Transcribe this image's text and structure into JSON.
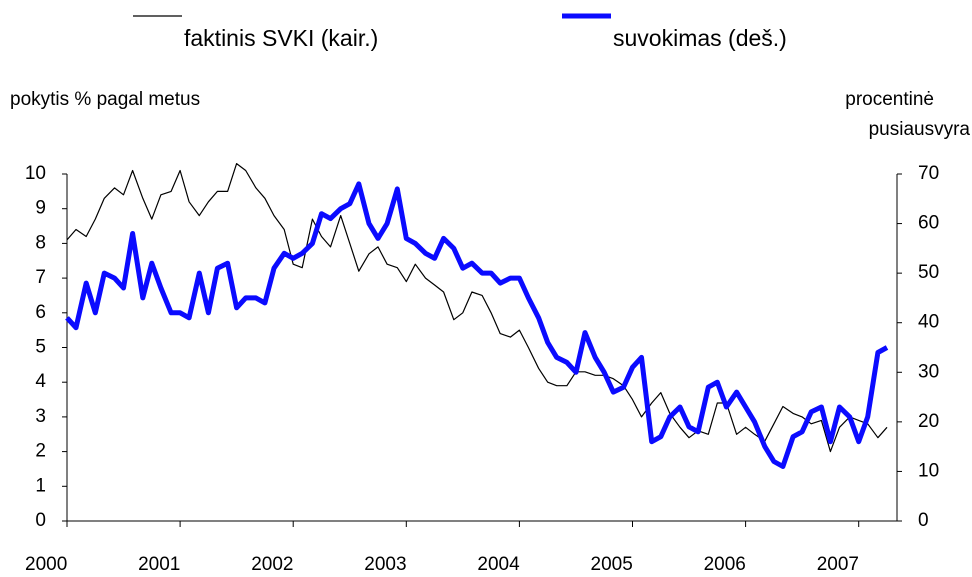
{
  "chart_data": {
    "type": "line",
    "ylabel": "pokytis % pagal metus",
    "y2label": [
      "procentinė",
      "pusiausvyra"
    ],
    "xlim": [
      2000,
      2007.33
    ],
    "xticks": [
      2000,
      2001,
      2002,
      2003,
      2004,
      2005,
      2006,
      2007
    ],
    "ylim": [
      0,
      10
    ],
    "yticks": [
      0,
      1,
      2,
      3,
      4,
      5,
      6,
      7,
      8,
      9,
      10
    ],
    "y2lim": [
      0,
      70
    ],
    "y2ticks": [
      0,
      10,
      20,
      30,
      40,
      50,
      60,
      70
    ],
    "x": [
      2000,
      2000.08,
      2000.17,
      2000.25,
      2000.33,
      2000.42,
      2000.5,
      2000.58,
      2000.67,
      2000.75,
      2000.83,
      2000.92,
      2001,
      2001.08,
      2001.17,
      2001.25,
      2001.33,
      2001.42,
      2001.5,
      2001.58,
      2001.67,
      2001.75,
      2001.83,
      2001.92,
      2002,
      2002.08,
      2002.17,
      2002.25,
      2002.33,
      2002.42,
      2002.5,
      2002.58,
      2002.67,
      2002.75,
      2002.83,
      2002.92,
      2003,
      2003.08,
      2003.17,
      2003.25,
      2003.33,
      2003.42,
      2003.5,
      2003.58,
      2003.67,
      2003.75,
      2003.83,
      2003.92,
      2004,
      2004.08,
      2004.17,
      2004.25,
      2004.33,
      2004.42,
      2004.5,
      2004.58,
      2004.67,
      2004.75,
      2004.83,
      2004.92,
      2005,
      2005.08,
      2005.17,
      2005.25,
      2005.33,
      2005.42,
      2005.5,
      2005.58,
      2005.67,
      2005.75,
      2005.83,
      2005.92,
      2006,
      2006.08,
      2006.17,
      2006.25,
      2006.33,
      2006.42,
      2006.5,
      2006.58,
      2006.67,
      2006.75,
      2006.83,
      2006.92,
      2007,
      2007.08,
      2007.17,
      2007.25
    ],
    "series": [
      {
        "name": "faktinis SVKI (kair.)",
        "color": "#000000",
        "width": 1.2,
        "values": [
          8.1,
          8.4,
          8.2,
          8.7,
          9.3,
          9.6,
          9.4,
          10.1,
          9.3,
          8.7,
          9.4,
          9.5,
          10.1,
          9.2,
          8.8,
          9.2,
          9.5,
          9.5,
          10.3,
          10.1,
          9.6,
          9.3,
          8.8,
          8.4,
          7.4,
          7.3,
          8.7,
          8.2,
          7.9,
          8.8,
          8.0,
          7.2,
          7.7,
          7.9,
          7.4,
          7.3,
          6.9,
          7.4,
          7.0,
          6.8,
          6.6,
          5.8,
          6.0,
          6.6,
          6.5,
          6.0,
          5.4,
          5.3,
          5.5,
          5.0,
          4.4,
          4.0,
          3.9,
          3.9,
          4.3,
          4.3,
          4.2,
          4.2,
          4.1,
          3.9,
          3.5,
          3.0,
          3.4,
          3.7,
          3.1,
          2.7,
          2.4,
          2.6,
          2.5,
          3.4,
          3.4,
          2.5,
          2.7,
          2.5,
          2.3,
          2.8,
          3.3,
          3.1,
          3.0,
          2.8,
          2.9,
          2.0,
          2.7,
          3.0,
          2.9,
          2.8,
          2.4,
          2.7
        ]
      },
      {
        "name": "suvokimas (deš.)",
        "color": "#0b0bff",
        "width": 5,
        "axis": "y2",
        "values": [
          41,
          39,
          48,
          42,
          50,
          49,
          47,
          58,
          45,
          52,
          47,
          42,
          42,
          41,
          50,
          42,
          51,
          52,
          43,
          45,
          45,
          44,
          51,
          54,
          53,
          54,
          56,
          62,
          61,
          63,
          64,
          68,
          60,
          57,
          60,
          67,
          57,
          56,
          54,
          53,
          57,
          55,
          51,
          52,
          50,
          50,
          48,
          49,
          49,
          45,
          41,
          36,
          33,
          32,
          30,
          38,
          33,
          30,
          26,
          27,
          31,
          33,
          16,
          17,
          21,
          23,
          19,
          18,
          27,
          28,
          23,
          26,
          23,
          20,
          15,
          12,
          11,
          17,
          18,
          22,
          23,
          16,
          23,
          21,
          16,
          21,
          34,
          35
        ]
      }
    ]
  }
}
